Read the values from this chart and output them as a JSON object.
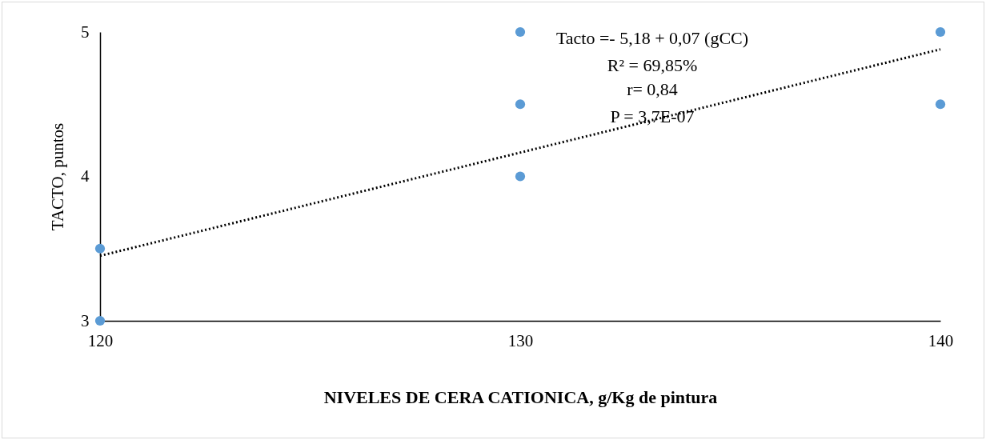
{
  "chart_data": {
    "type": "scatter",
    "xlabel": "NIVELES DE CERA CATIONICA, g/Kg de pintura",
    "ylabel": "TACTO, puntos",
    "xlim": [
      120,
      140
    ],
    "xticks": [
      120,
      130,
      140
    ],
    "ylim": [
      3,
      5
    ],
    "yticks": [
      3,
      4,
      5
    ],
    "grid": false,
    "marker": "circle",
    "series": [
      {
        "type": "scatter",
        "color": "#5b9bd5",
        "x": [
          120,
          120,
          130,
          130,
          130,
          140,
          140
        ],
        "values": [
          3.5,
          3,
          5,
          4.5,
          4,
          5,
          4.5
        ]
      },
      {
        "type": "line",
        "color": "#000000",
        "line_style": "dotted",
        "marker": "none",
        "x": [
          120,
          140
        ],
        "values": [
          3.45,
          4.88
        ]
      }
    ],
    "annotations": [
      "Tacto  =- 5,18 + 0,07 (gCC)",
      "R² = 69,85%",
      "r=   0,84",
      "P = 3,7E-07"
    ]
  }
}
